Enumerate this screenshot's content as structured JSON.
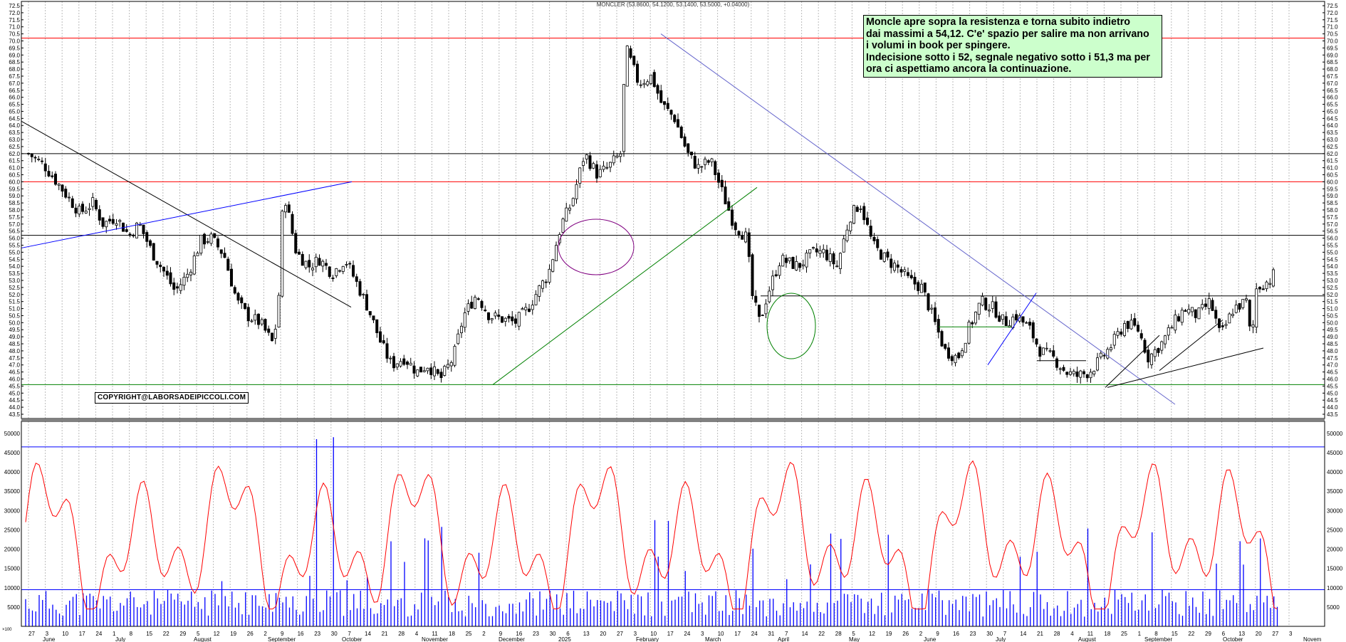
{
  "chart_data": [
    {
      "type": "candlestick",
      "title": "MONCLER (53.8600, 54.1200, 53.1400, 53.5000, +0.04000)",
      "ylim": [
        43.5,
        72.5
      ],
      "y_ticks": [
        "43.5",
        "44.0",
        "44.5",
        "45.0",
        "45.5",
        "46.0",
        "46.5",
        "47.0",
        "47.5",
        "48.0",
        "48.5",
        "49.0",
        "49.5",
        "50.0",
        "50.5",
        "51.0",
        "51.5",
        "52.0",
        "52.5",
        "53.0",
        "53.5",
        "54.0",
        "54.5",
        "55.0",
        "55.5",
        "56.0",
        "56.5",
        "57.0",
        "57.5",
        "58.0",
        "58.5",
        "59.0",
        "59.5",
        "60.0",
        "60.5",
        "61.0",
        "61.5",
        "62.0",
        "62.5",
        "63.0",
        "63.5",
        "64.0",
        "64.5",
        "65.0",
        "65.5",
        "66.0",
        "66.5",
        "67.0",
        "67.5",
        "68.0",
        "68.5",
        "69.0",
        "69.5",
        "70.0",
        "70.5",
        "71.0",
        "71.5",
        "72.0",
        "72.5"
      ],
      "series": [
        {
          "points": [
            {
              "x": "2024-06-27",
              "y": 62.0
            },
            {
              "x": "2024-07-03",
              "y": 61.2
            },
            {
              "x": "2024-07-08",
              "y": 60.0
            },
            {
              "x": "2024-07-12",
              "y": 59.0
            },
            {
              "x": "2024-07-17",
              "y": 57.8
            },
            {
              "x": "2024-07-22",
              "y": 58.5
            },
            {
              "x": "2024-07-26",
              "y": 57.0
            },
            {
              "x": "2024-07-31",
              "y": 57.5
            },
            {
              "x": "2024-08-05",
              "y": 56.2
            },
            {
              "x": "2024-08-09",
              "y": 57.0
            },
            {
              "x": "2024-08-14",
              "y": 55.0
            },
            {
              "x": "2024-08-19",
              "y": 53.5
            },
            {
              "x": "2024-08-23",
              "y": 52.2
            },
            {
              "x": "2024-08-28",
              "y": 53.5
            },
            {
              "x": "2024-09-02",
              "y": 55.8
            },
            {
              "x": "2024-09-06",
              "y": 56.0
            },
            {
              "x": "2024-09-11",
              "y": 54.8
            },
            {
              "x": "2024-09-16",
              "y": 51.5
            },
            {
              "x": "2024-09-20",
              "y": 50.5
            },
            {
              "x": "2024-09-25",
              "y": 50.0
            },
            {
              "x": "2024-09-30",
              "y": 48.5
            },
            {
              "x": "2024-10-02",
              "y": 51.0
            },
            {
              "x": "2024-10-04",
              "y": 59.5
            },
            {
              "x": "2024-10-09",
              "y": 55.0
            },
            {
              "x": "2024-10-14",
              "y": 54.0
            },
            {
              "x": "2024-10-18",
              "y": 54.5
            },
            {
              "x": "2024-10-23",
              "y": 53.5
            },
            {
              "x": "2024-10-28",
              "y": 54.5
            },
            {
              "x": "2024-11-01",
              "y": 53.0
            },
            {
              "x": "2024-11-06",
              "y": 51.0
            },
            {
              "x": "2024-11-11",
              "y": 48.5
            },
            {
              "x": "2024-11-15",
              "y": 47.0
            },
            {
              "x": "2024-11-20",
              "y": 47.5
            },
            {
              "x": "2024-11-25",
              "y": 46.5
            },
            {
              "x": "2024-11-29",
              "y": 47.0
            },
            {
              "x": "2024-12-04",
              "y": 46.0
            },
            {
              "x": "2024-12-09",
              "y": 47.5
            },
            {
              "x": "2024-12-13",
              "y": 50.5
            },
            {
              "x": "2024-12-18",
              "y": 52.0
            },
            {
              "x": "2024-12-23",
              "y": 50.5
            },
            {
              "x": "2025-01-02",
              "y": 50.0
            },
            {
              "x": "2025-01-07",
              "y": 51.0
            },
            {
              "x": "2025-01-10",
              "y": 52.0
            },
            {
              "x": "2025-01-15",
              "y": 53.5
            },
            {
              "x": "2025-01-20",
              "y": 57.0
            },
            {
              "x": "2025-01-24",
              "y": 58.5
            },
            {
              "x": "2025-01-29",
              "y": 62.0
            },
            {
              "x": "2025-02-03",
              "y": 60.5
            },
            {
              "x": "2025-02-07",
              "y": 61.0
            },
            {
              "x": "2025-02-12",
              "y": 62.0
            },
            {
              "x": "2025-02-14",
              "y": 69.5
            },
            {
              "x": "2025-02-19",
              "y": 67.0
            },
            {
              "x": "2025-02-24",
              "y": 67.5
            },
            {
              "x": "2025-02-28",
              "y": 65.5
            },
            {
              "x": "2025-03-05",
              "y": 64.5
            },
            {
              "x": "2025-03-10",
              "y": 62.0
            },
            {
              "x": "2025-03-14",
              "y": 61.0
            },
            {
              "x": "2025-03-19",
              "y": 61.5
            },
            {
              "x": "2025-03-24",
              "y": 59.0
            },
            {
              "x": "2025-03-28",
              "y": 57.0
            },
            {
              "x": "2025-04-02",
              "y": 56.0
            },
            {
              "x": "2025-04-04",
              "y": 52.0
            },
            {
              "x": "2025-04-07",
              "y": 50.0
            },
            {
              "x": "2025-04-10",
              "y": 52.0
            },
            {
              "x": "2025-04-15",
              "y": 54.5
            },
            {
              "x": "2025-04-22",
              "y": 54.0
            },
            {
              "x": "2025-04-28",
              "y": 55.0
            },
            {
              "x": "2025-05-02",
              "y": 55.0
            },
            {
              "x": "2025-05-07",
              "y": 54.0
            },
            {
              "x": "2025-05-12",
              "y": 57.5
            },
            {
              "x": "2025-05-16",
              "y": 58.5
            },
            {
              "x": "2025-05-21",
              "y": 55.5
            },
            {
              "x": "2025-05-26",
              "y": 54.5
            },
            {
              "x": "2025-05-30",
              "y": 54.0
            },
            {
              "x": "2025-06-04",
              "y": 53.0
            },
            {
              "x": "2025-06-09",
              "y": 52.5
            },
            {
              "x": "2025-06-13",
              "y": 50.5
            },
            {
              "x": "2025-06-18",
              "y": 48.0
            },
            {
              "x": "2025-06-23",
              "y": 47.5
            },
            {
              "x": "2025-06-27",
              "y": 49.5
            },
            {
              "x": "2025-07-02",
              "y": 51.5
            },
            {
              "x": "2025-07-07",
              "y": 51.0
            },
            {
              "x": "2025-07-11",
              "y": 50.0
            },
            {
              "x": "2025-07-16",
              "y": 50.5
            },
            {
              "x": "2025-07-21",
              "y": 49.5
            },
            {
              "x": "2025-07-25",
              "y": 48.0
            },
            {
              "x": "2025-07-30",
              "y": 47.5
            },
            {
              "x": "2025-08-04",
              "y": 46.5
            },
            {
              "x": "2025-08-08",
              "y": 46.2
            },
            {
              "x": "2025-08-13",
              "y": 46.5
            },
            {
              "x": "2025-08-18",
              "y": 47.5
            },
            {
              "x": "2025-08-22",
              "y": 48.5
            },
            {
              "x": "2025-08-27",
              "y": 50.0
            },
            {
              "x": "2025-09-01",
              "y": 49.5
            },
            {
              "x": "2025-09-05",
              "y": 47.5
            },
            {
              "x": "2025-09-10",
              "y": 48.5
            },
            {
              "x": "2025-09-15",
              "y": 50.0
            },
            {
              "x": "2025-09-19",
              "y": 51.0
            },
            {
              "x": "2025-09-24",
              "y": 50.5
            },
            {
              "x": "2025-09-29",
              "y": 51.5
            },
            {
              "x": "2025-10-03",
              "y": 49.0
            },
            {
              "x": "2025-10-08",
              "y": 51.0
            },
            {
              "x": "2025-10-13",
              "y": 51.5
            },
            {
              "x": "2025-10-15",
              "y": 48.5
            },
            {
              "x": "2025-10-17",
              "y": 52.5
            },
            {
              "x": "2025-10-22",
              "y": 53.0
            },
            {
              "x": "2025-10-24",
              "y": 53.5
            }
          ]
        }
      ],
      "horizontal_lines": [
        {
          "y": 70.2,
          "color": "#ff0000"
        },
        {
          "y": 60.0,
          "color": "#ff0000"
        },
        {
          "y": 62.0,
          "color": "#000000"
        },
        {
          "y": 56.2,
          "color": "#000000"
        },
        {
          "y": 45.6,
          "color": "#008000"
        },
        {
          "y": 51.9,
          "color": "#000000"
        }
      ]
    },
    {
      "type": "bar+line",
      "ylim": [
        0,
        52000
      ],
      "y_ticks": [
        "5000",
        "10000",
        "15000",
        "20000",
        "25000",
        "30000",
        "35000",
        "40000",
        "45000",
        "50000"
      ],
      "reference_lines": [
        46500,
        9500
      ],
      "volume_color": "#0000ff",
      "average_color": "#ff0000"
    }
  ],
  "x_axis": {
    "day_labels": [
      "27",
      "3",
      "10",
      "17",
      "24",
      "1",
      "8",
      "15",
      "22",
      "29",
      "5",
      "12",
      "19",
      "26",
      "2",
      "9",
      "16",
      "23",
      "30",
      "7",
      "14",
      "21",
      "28",
      "4",
      "11",
      "18",
      "25",
      "2",
      "9",
      "16",
      "23",
      "30",
      "6",
      "13",
      "20",
      "27",
      "3",
      "10",
      "17",
      "24",
      "3",
      "10",
      "17",
      "24",
      "31",
      "7",
      "14",
      "22",
      "28",
      "5",
      "12",
      "19",
      "26",
      "2",
      "9",
      "16",
      "23",
      "30",
      "7",
      "14",
      "21",
      "28",
      "4",
      "11",
      "18",
      "25",
      "1",
      "8",
      "15",
      "22",
      "29",
      "6",
      "13",
      "20",
      "27",
      "3"
    ],
    "month_labels": [
      "June",
      "July",
      "August",
      "September",
      "October",
      "November",
      "December",
      "2025",
      "February",
      "March",
      "April",
      "May",
      "June",
      "July",
      "August",
      "September",
      "October",
      "Novem"
    ]
  },
  "annotation": {
    "lines": [
      "Moncle apre sopra la resistenza e torna subito indietro",
      "dai massimi a 54,12. C'e' spazio per salire ma non arrivano",
      "i volumi in book per spingere.",
      "Indecisione sotto i 52, segnale negativo sotto i 51,3 ma per",
      "ora ci aspettiamo ancora la continuazione."
    ]
  },
  "copyright": "COPYRIGHT@LABORSADEIPICCOLI.COM",
  "corner_label": "×100",
  "colors": {
    "red_line": "#ff0000",
    "green_line": "#008000",
    "blue_line": "#0000ff",
    "trend_blue": "#6666cc",
    "ellipse_purple": "#800080",
    "annotation_bg": "#ccffcc"
  }
}
